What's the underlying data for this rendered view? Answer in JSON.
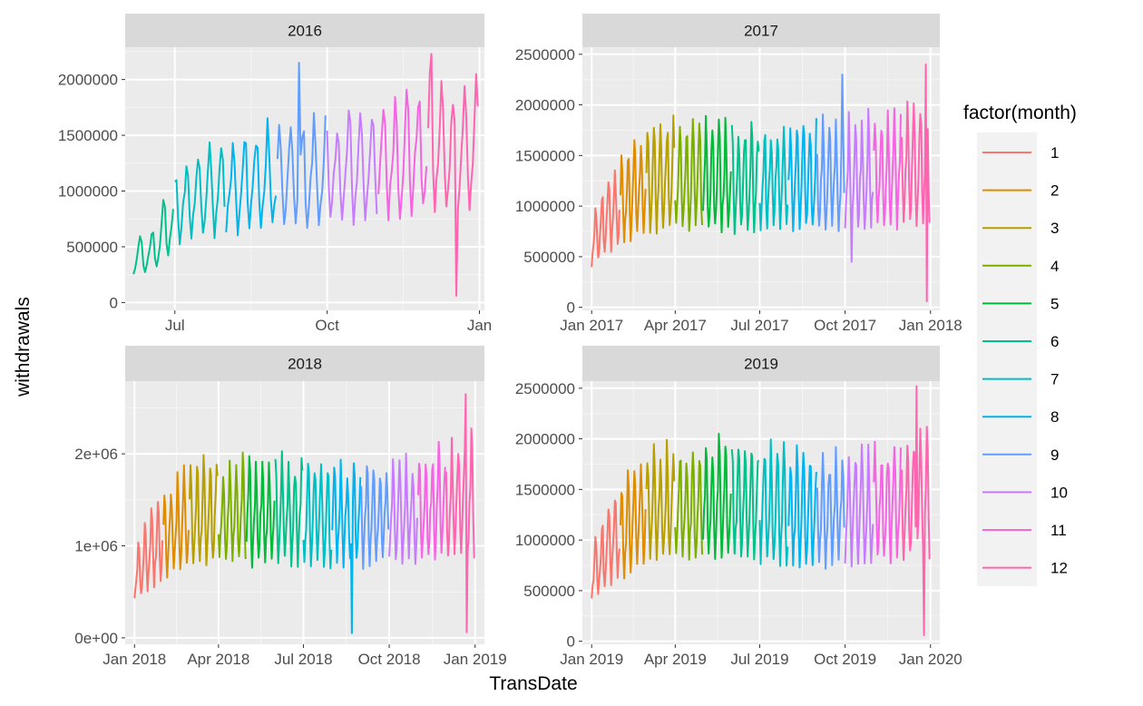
{
  "chart_data": {
    "type": "line",
    "xlabel": "TransDate",
    "ylabel": "withdrawals",
    "legend": {
      "title": "factor(month)",
      "position": "right",
      "entries": [
        "1",
        "2",
        "3",
        "4",
        "5",
        "6",
        "7",
        "8",
        "9",
        "10",
        "11",
        "12"
      ],
      "colors": [
        "#F8766D",
        "#DE8C00",
        "#B79F00",
        "#7CAE00",
        "#00BA38",
        "#00C08B",
        "#00BFC4",
        "#00B4F0",
        "#619CFF",
        "#C77CFF",
        "#F564E3",
        "#FF64B0"
      ]
    },
    "colors": {
      "panel_bg": "#EBEBEB",
      "strip_bg": "#D9D9D9",
      "grid_major": "#FFFFFF",
      "grid_minor": "#F5F5F5"
    },
    "facets": [
      {
        "label": "2016",
        "x_range": [
          "2016-06-01",
          "2017-01-04"
        ],
        "x_ticks": [
          {
            "date": "2016-07-01",
            "label": "Jul"
          },
          {
            "date": "2016-10-01",
            "label": "Oct"
          },
          {
            "date": "2017-01-01",
            "label": "Jan"
          }
        ],
        "ylim": [
          -70000,
          2290000
        ],
        "y_ticks": [
          {
            "value": 0,
            "label": "0"
          },
          {
            "value": 500000,
            "label": "500000"
          },
          {
            "value": 1000000,
            "label": "1000000"
          },
          {
            "value": 1500000,
            "label": "1500000"
          },
          {
            "value": 2000000,
            "label": "2000000"
          }
        ],
        "data_start": "2016-06-06",
        "data_end": "2016-12-31",
        "trend": [
          [
            0,
            400000
          ],
          [
            10,
            420000
          ],
          [
            30,
            900000
          ],
          [
            60,
            1050000
          ],
          [
            120,
            1150000
          ],
          [
            180,
            1350000
          ],
          [
            206,
            1350000
          ]
        ],
        "spikes": [
          [
            100,
            2150000
          ],
          [
            180,
            2230000
          ]
        ],
        "dips": [
          [
            195,
            60000
          ]
        ]
      },
      {
        "label": "2017",
        "x_range": [
          "2016-12-22",
          "2018-01-11"
        ],
        "x_ticks": [
          {
            "date": "2017-01-01",
            "label": "Jan 2017"
          },
          {
            "date": "2017-04-01",
            "label": "Apr 2017"
          },
          {
            "date": "2017-07-01",
            "label": "Jul 2017"
          },
          {
            "date": "2017-10-01",
            "label": "Oct 2017"
          },
          {
            "date": "2018-01-01",
            "label": "Jan 2018"
          }
        ],
        "ylim": [
          -30000,
          2570000
        ],
        "y_ticks": [
          {
            "value": 0,
            "label": "0"
          },
          {
            "value": 500000,
            "label": "500000"
          },
          {
            "value": 1000000,
            "label": "1000000"
          },
          {
            "value": 1500000,
            "label": "1500000"
          },
          {
            "value": 2000000,
            "label": "2000000"
          },
          {
            "value": 2500000,
            "label": "2500000"
          }
        ],
        "data_start": "2017-01-01",
        "data_end": "2017-12-31",
        "trend": [
          [
            0,
            650000
          ],
          [
            20,
            900000
          ],
          [
            60,
            1250000
          ],
          [
            150,
            1250000
          ],
          [
            250,
            1250000
          ],
          [
            320,
            1300000
          ],
          [
            364,
            1400000
          ]
        ],
        "spikes": [
          [
            270,
            2300000
          ],
          [
            360,
            2400000
          ]
        ],
        "dips": [
          [
            280,
            450000
          ],
          [
            361,
            60000
          ]
        ]
      },
      {
        "label": "2018",
        "x_range": [
          "2017-12-22",
          "2019-01-11"
        ],
        "x_ticks": [
          {
            "date": "2018-01-01",
            "label": "Jan 2018"
          },
          {
            "date": "2018-04-01",
            "label": "Apr 2018"
          },
          {
            "date": "2018-07-01",
            "label": "Jul 2018"
          },
          {
            "date": "2018-10-01",
            "label": "Oct 2018"
          },
          {
            "date": "2019-01-01",
            "label": "Jan 2019"
          }
        ],
        "ylim": [
          -70000,
          2790000
        ],
        "y_ticks": [
          {
            "value": 0,
            "label": "0e+00"
          },
          {
            "value": 1000000,
            "label": "1e+06"
          },
          {
            "value": 2000000,
            "label": "2e+06"
          }
        ],
        "data_start": "2018-01-01",
        "data_end": "2018-12-31",
        "trend": [
          [
            0,
            650000
          ],
          [
            20,
            950000
          ],
          [
            60,
            1300000
          ],
          [
            150,
            1350000
          ],
          [
            250,
            1300000
          ],
          [
            330,
            1400000
          ],
          [
            364,
            1500000
          ]
        ],
        "spikes": [
          [
            355,
            2650000
          ]
        ],
        "dips": [
          [
            233,
            50000
          ],
          [
            356,
            60000
          ]
        ]
      },
      {
        "label": "2019",
        "x_range": [
          "2018-12-22",
          "2020-01-11"
        ],
        "x_ticks": [
          {
            "date": "2019-01-01",
            "label": "Jan 2019"
          },
          {
            "date": "2019-04-01",
            "label": "Apr 2019"
          },
          {
            "date": "2019-07-01",
            "label": "Jul 2019"
          },
          {
            "date": "2019-10-01",
            "label": "Oct 2019"
          },
          {
            "date": "2020-01-01",
            "label": "Jan 2020"
          }
        ],
        "ylim": [
          -30000,
          2570000
        ],
        "y_ticks": [
          {
            "value": 0,
            "label": "0"
          },
          {
            "value": 500000,
            "label": "500000"
          },
          {
            "value": 1000000,
            "label": "1000000"
          },
          {
            "value": 1500000,
            "label": "1500000"
          },
          {
            "value": 2000000,
            "label": "2000000"
          },
          {
            "value": 2500000,
            "label": "2500000"
          }
        ],
        "data_start": "2019-01-01",
        "data_end": "2019-12-31",
        "trend": [
          [
            0,
            650000
          ],
          [
            20,
            950000
          ],
          [
            60,
            1300000
          ],
          [
            150,
            1350000
          ],
          [
            250,
            1250000
          ],
          [
            330,
            1350000
          ],
          [
            364,
            1400000
          ]
        ],
        "spikes": [
          [
            350,
            2520000
          ]
        ],
        "dips": [
          [
            358,
            60000
          ]
        ]
      }
    ]
  }
}
